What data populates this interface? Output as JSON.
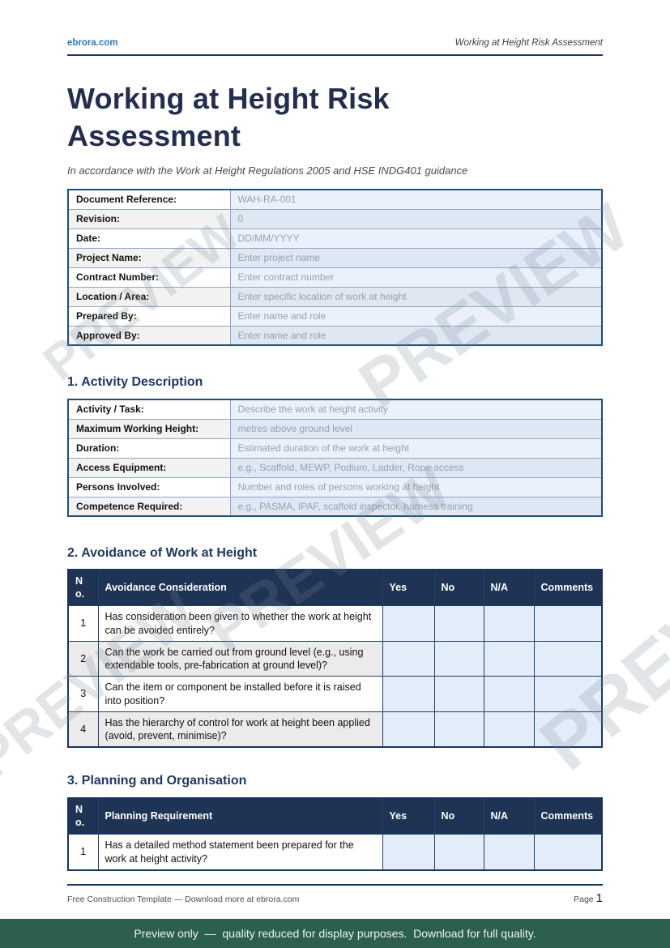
{
  "header": {
    "site": "ebrora.com",
    "doc_title": "Working at Height Risk Assessment"
  },
  "title": "Working at Height Risk Assessment",
  "subtitle": "In accordance with the Work at Height Regulations 2005 and HSE INDG401 guidance",
  "watermark_text": "PREVIEW",
  "doc_info": {
    "rows": [
      {
        "label": "Document Reference:",
        "value": "WAH-RA-001"
      },
      {
        "label": "Revision:",
        "value": "0"
      },
      {
        "label": "Date:",
        "value": "DD/MM/YYYY"
      },
      {
        "label": "Project Name:",
        "value": "Enter project name"
      },
      {
        "label": "Contract Number:",
        "value": "Enter contract number"
      },
      {
        "label": "Location / Area:",
        "value": "Enter specific location of work at height"
      },
      {
        "label": "Prepared By:",
        "value": "Enter name and role"
      },
      {
        "label": "Approved By:",
        "value": "Enter name and role"
      }
    ]
  },
  "section1": {
    "heading": "1. Activity Description",
    "rows": [
      {
        "label": "Activity / Task:",
        "value": "Describe the work at height activity"
      },
      {
        "label": "Maximum Working Height:",
        "value": "metres above ground level"
      },
      {
        "label": "Duration:",
        "value": "Estimated duration of the work at height"
      },
      {
        "label": "Access Equipment:",
        "value": "e.g., Scaffold, MEWP, Podium, Ladder, Rope access"
      },
      {
        "label": "Persons Involved:",
        "value": "Number and roles of persons working at height"
      },
      {
        "label": "Competence Required:",
        "value": "e.g., PASMA, IPAF, scaffold inspector, harness training"
      }
    ]
  },
  "section2": {
    "heading": "2. Avoidance of Work at Height",
    "columns": {
      "no": "No.",
      "main": "Avoidance Consideration",
      "yes": "Yes",
      "no2": "No",
      "na": "N/A",
      "comments": "Comments"
    },
    "rows": [
      {
        "num": "1",
        "text": "Has consideration been given to whether the work at height can be avoided entirely?"
      },
      {
        "num": "2",
        "text": "Can the work be carried out from ground level (e.g., using extendable tools, pre-fabrication at ground level)?"
      },
      {
        "num": "3",
        "text": "Can the item or component be installed before it is raised into position?"
      },
      {
        "num": "4",
        "text": "Has the hierarchy of control for work at height been applied (avoid, prevent, minimise)?"
      }
    ]
  },
  "section3": {
    "heading": "3. Planning and Organisation",
    "columns": {
      "no": "No.",
      "main": "Planning Requirement",
      "yes": "Yes",
      "no2": "No",
      "na": "N/A",
      "comments": "Comments"
    },
    "rows": [
      {
        "num": "1",
        "text": "Has a detailed method statement been prepared for the work at height activity?"
      }
    ]
  },
  "footer": {
    "left": "Free Construction Template — Download more at ebrora.com",
    "page_label": "Page",
    "page_number": "1"
  },
  "preview_bar": "Preview only  —  quality reduced for display purposes.  Download for full quality.",
  "colors": {
    "header_navy": "#1f3354",
    "heading_navy": "#1f3864",
    "title_navy": "#232d4f",
    "link_blue": "#2e74b5",
    "cell_blue": "#eaf1fb",
    "answer_cell_blue": "#e3edf9",
    "preview_bar_green": "#2d5f50"
  }
}
